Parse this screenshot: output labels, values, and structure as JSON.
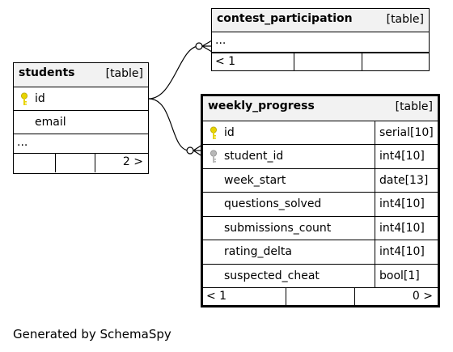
{
  "tables": {
    "contest_participation": {
      "name": "contest_participation",
      "kind": "[table]",
      "more": "...",
      "footer_left": "< 1",
      "footer_right": ""
    },
    "students": {
      "name": "students",
      "kind": "[table]",
      "columns": [
        {
          "name": "id",
          "key": "primary"
        },
        {
          "name": "email",
          "key": ""
        }
      ],
      "more": "...",
      "footer_left": "",
      "footer_right": "2 >"
    },
    "weekly_progress": {
      "name": "weekly_progress",
      "kind": "[table]",
      "columns": [
        {
          "name": "id",
          "type": "serial[10]",
          "key": "primary"
        },
        {
          "name": "student_id",
          "type": "int4[10]",
          "key": "foreign"
        },
        {
          "name": "week_start",
          "type": "date[13]",
          "key": ""
        },
        {
          "name": "questions_solved",
          "type": "int4[10]",
          "key": ""
        },
        {
          "name": "submissions_count",
          "type": "int4[10]",
          "key": ""
        },
        {
          "name": "rating_delta",
          "type": "int4[10]",
          "key": ""
        },
        {
          "name": "suspected_cheat",
          "type": "bool[1]",
          "key": ""
        }
      ],
      "footer_left": "< 1",
      "footer_right": "0 >"
    }
  },
  "footer": {
    "generated_by": "Generated by SchemaSpy"
  },
  "colors": {
    "primary_key": "#e8d400",
    "foreign_key": "#b8b8b8",
    "header_bg": "#f2f2f2"
  },
  "icons": {
    "primary_key": "key-icon",
    "foreign_key": "foreign-key-icon"
  }
}
